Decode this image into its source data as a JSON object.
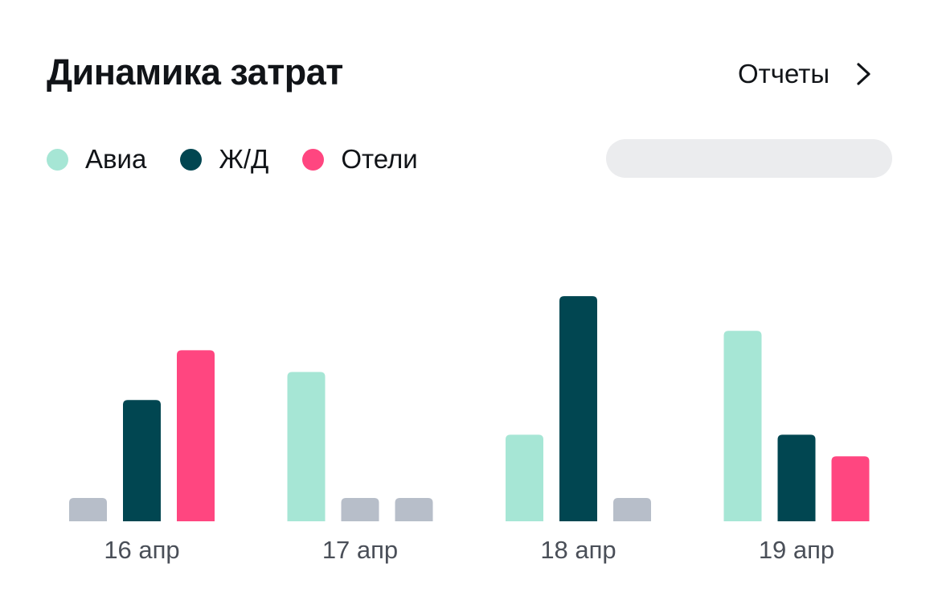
{
  "header": {
    "title": "Динамика затрат",
    "reports_label": "Отчеты",
    "reports_icon": "chevron-right-icon"
  },
  "legend": [
    {
      "label": "Авиа",
      "color": "#a6e6d5"
    },
    {
      "label": "Ж/Д",
      "color": "#014651"
    },
    {
      "label": "Отели",
      "color": "#ff4680"
    }
  ],
  "colors": {
    "empty_bar": "#b7bec9",
    "skeleton": "#ebecee"
  },
  "chart_data": {
    "type": "bar",
    "categories": [
      "16 апр",
      "17 апр",
      "18 апр",
      "19 апр"
    ],
    "series": [
      {
        "name": "Авиа",
        "color": "#a6e6d5",
        "values": [
          0,
          6.9,
          4.0,
          8.8
        ]
      },
      {
        "name": "Ж/Д",
        "color": "#014651",
        "values": [
          5.6,
          0,
          10.4,
          4.0
        ]
      },
      {
        "name": "Отели",
        "color": "#ff4680",
        "values": [
          7.9,
          0,
          0,
          3.0
        ]
      }
    ],
    "ylim": [
      0,
      11
    ],
    "grid": false,
    "legend_position": "top-left",
    "empty_value_placeholder": true
  }
}
